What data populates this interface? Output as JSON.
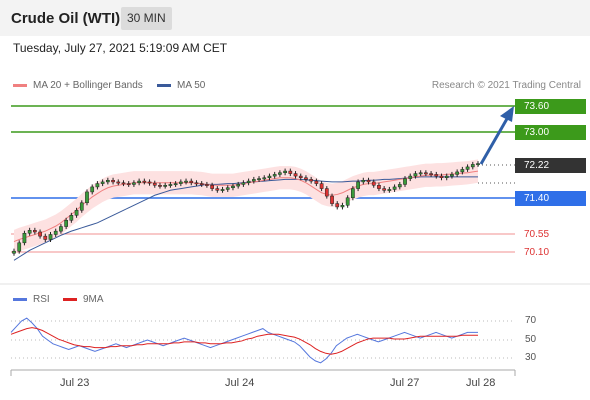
{
  "header": {
    "title": "Crude Oil (WTI)",
    "timeframe": "30 MIN"
  },
  "timestamp": "Tuesday, July 27, 2021 5:19:09 AM CET",
  "legend": {
    "ma20_label": "MA 20 + Bollinger Bands",
    "ma50_label": "MA 50",
    "copyright": "Research © 2021 Trading Central"
  },
  "colors": {
    "resistance": "#3c9a1b",
    "support": "#2f6fe8",
    "current": "#333333",
    "weak_level": "#e03030",
    "ma20": "#f08080",
    "ma50": "#3a5a9a",
    "bollinger_fill": "#fde1e1",
    "arrow": "#2f5fa8",
    "rsi": "#5577dd",
    "rsi_ma": "#dd2222"
  },
  "levels": {
    "r2": "73.60",
    "r1": "73.00",
    "current": "72.22",
    "s1": "71.40",
    "s2": "70.55",
    "s3": "70.10"
  },
  "rsi_panel": {
    "rsi_label": "RSI",
    "ma_label": "9MA",
    "ticks": [
      "70",
      "50",
      "30"
    ]
  },
  "x_axis": {
    "dates": [
      "Jul 23",
      "Jul 24",
      "Jul 27",
      "Jul 28"
    ]
  },
  "chart_data": {
    "type": "line",
    "price_series_close": [
      70.12,
      70.32,
      70.55,
      70.62,
      70.58,
      70.48,
      70.4,
      70.52,
      70.6,
      70.71,
      70.86,
      70.98,
      71.1,
      71.28,
      71.54,
      71.66,
      71.74,
      71.78,
      71.82,
      71.78,
      71.76,
      71.74,
      71.72,
      71.76,
      71.8,
      71.78,
      71.75,
      71.7,
      71.68,
      71.7,
      71.72,
      71.74,
      71.78,
      71.8,
      71.76,
      71.74,
      71.72,
      71.7,
      71.62,
      71.58,
      71.6,
      71.64,
      71.68,
      71.72,
      71.76,
      71.8,
      71.84,
      71.86,
      71.88,
      71.92,
      71.96,
      72.0,
      72.04,
      71.98,
      71.92,
      71.88,
      71.84,
      71.8,
      71.74,
      71.62,
      71.44,
      71.26,
      71.18,
      71.22,
      71.4,
      71.62,
      71.78,
      71.82,
      71.78,
      71.7,
      71.62,
      71.58,
      71.6,
      71.66,
      71.72,
      71.86,
      71.92,
      71.98,
      72.0,
      71.98,
      71.96,
      71.92,
      71.88,
      71.92,
      71.96,
      72.02,
      72.08,
      72.14,
      72.2,
      72.22
    ],
    "ma20": [
      70.35,
      70.4,
      70.44,
      70.48,
      70.52,
      70.56,
      70.6,
      70.66,
      70.72,
      70.8,
      70.9,
      71.0,
      71.1,
      71.22,
      71.32,
      71.42,
      71.5,
      71.58,
      71.64,
      71.68,
      71.7,
      71.72,
      71.74,
      71.76,
      71.76,
      71.76,
      71.76,
      71.76,
      71.76,
      71.76,
      71.76,
      71.76,
      71.76,
      71.76,
      71.76,
      71.75,
      71.74,
      71.72,
      71.7,
      71.7,
      71.7,
      71.7,
      71.7,
      71.72,
      71.74,
      71.76,
      71.78,
      71.8,
      71.82,
      71.84,
      71.86,
      71.88,
      71.88,
      71.88,
      71.86,
      71.82,
      71.76,
      71.68,
      71.6,
      71.52,
      71.48,
      71.46,
      71.48,
      71.52,
      71.58,
      71.64,
      71.68,
      71.72,
      71.74,
      71.74,
      71.76,
      71.78,
      71.8,
      71.82,
      71.84,
      71.86,
      71.88,
      71.9,
      71.92,
      71.94,
      71.94,
      71.95,
      71.95,
      71.96,
      71.97,
      71.98,
      71.99,
      72.0,
      72.02,
      72.04
    ],
    "ma50": [
      69.9,
      69.98,
      70.06,
      70.14,
      70.2,
      70.26,
      70.32,
      70.38,
      70.44,
      70.5,
      70.55,
      70.6,
      70.64,
      70.68,
      70.72,
      70.76,
      70.8,
      70.86,
      70.92,
      70.98,
      71.04,
      71.1,
      71.16,
      71.22,
      71.28,
      71.34,
      71.4,
      71.46,
      71.5,
      71.54,
      71.58,
      71.6,
      71.62,
      71.64,
      71.66,
      71.68,
      71.7,
      71.72,
      71.72,
      71.72,
      71.73,
      71.74,
      71.74,
      71.75,
      71.76,
      71.77,
      71.78,
      71.79,
      71.8,
      71.81,
      71.82,
      71.83,
      71.84,
      71.84,
      71.84,
      71.84,
      71.83,
      71.82,
      71.81,
      71.8,
      71.79,
      71.78,
      71.78,
      71.78,
      71.79,
      71.8,
      71.8,
      71.81,
      71.82,
      71.82,
      71.83,
      71.84,
      71.84,
      71.85,
      71.86,
      71.87,
      71.88,
      71.89,
      71.9,
      71.9,
      71.9,
      71.9,
      71.9,
      71.9,
      71.9,
      71.9,
      71.9,
      71.9,
      71.9,
      71.9
    ],
    "rsi": [
      58,
      64,
      70,
      73,
      68,
      62,
      54,
      50,
      46,
      44,
      42,
      40,
      42,
      44,
      42,
      40,
      38,
      40,
      42,
      44,
      46,
      44,
      42,
      44,
      46,
      48,
      50,
      48,
      46,
      44,
      46,
      48,
      50,
      52,
      50,
      48,
      46,
      44,
      42,
      44,
      46,
      48,
      50,
      52,
      54,
      56,
      58,
      60,
      62,
      58,
      56,
      54,
      52,
      50,
      48,
      44,
      38,
      32,
      28,
      26,
      30,
      36,
      44,
      48,
      52,
      54,
      56,
      54,
      52,
      50,
      48,
      50,
      52,
      54,
      56,
      58,
      56,
      54,
      52,
      54,
      56,
      58,
      56,
      54,
      52,
      54,
      56,
      58,
      58,
      58
    ],
    "rsi_ma": [
      56,
      58,
      60,
      62,
      63,
      62,
      60,
      57,
      54,
      51,
      49,
      47,
      45,
      44,
      43,
      43,
      42,
      42,
      42,
      43,
      43,
      44,
      44,
      44,
      45,
      45,
      46,
      46,
      46,
      46,
      46,
      47,
      47,
      48,
      48,
      48,
      47,
      47,
      46,
      46,
      46,
      47,
      47,
      48,
      49,
      51,
      52,
      54,
      55,
      56,
      56,
      56,
      55,
      54,
      53,
      51,
      48,
      45,
      41,
      38,
      36,
      35,
      36,
      38,
      41,
      44,
      47,
      49,
      51,
      52,
      52,
      52,
      52,
      51,
      51,
      51,
      52,
      53,
      54,
      54,
      54,
      54,
      54,
      54,
      54,
      54,
      55,
      55,
      55,
      55
    ],
    "price_ylim": [
      70.0,
      73.8
    ],
    "rsi_ylim": [
      20,
      80
    ]
  }
}
